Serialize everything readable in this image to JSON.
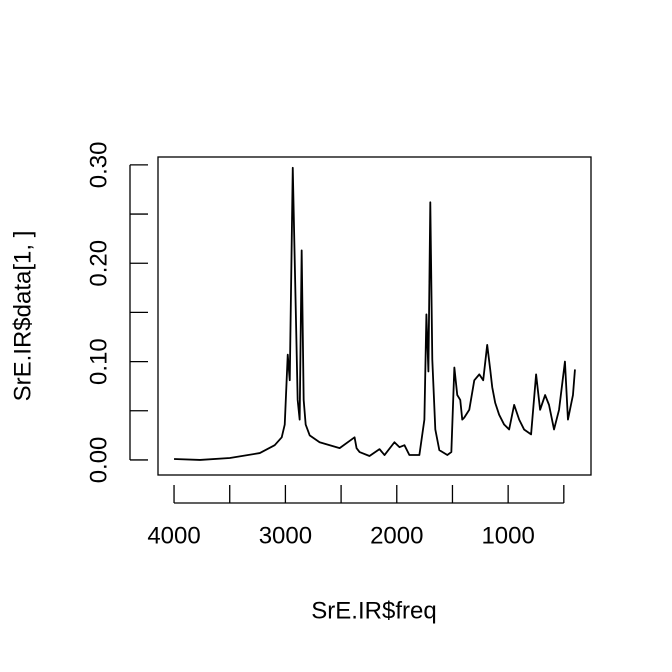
{
  "chart_data": {
    "type": "line",
    "x_label": "SrE.IR$freq",
    "y_label": "SrE.IR$data[1, ]",
    "x": [
      4000,
      3767,
      3499,
      3230,
      3096,
      3033,
      3006,
      2979,
      2961,
      2934,
      2907,
      2890,
      2872,
      2854,
      2836,
      2818,
      2782,
      2693,
      2513,
      2379,
      2361,
      2334,
      2245,
      2155,
      2110,
      2021,
      1976,
      1931,
      1887,
      1797,
      1752,
      1734,
      1716,
      1699,
      1681,
      1654,
      1618,
      1546,
      1510,
      1483,
      1457,
      1430,
      1412,
      1394,
      1349,
      1304,
      1259,
      1224,
      1188,
      1161,
      1143,
      1116,
      1081,
      1036,
      991,
      946,
      901,
      857,
      794,
      749,
      713,
      668,
      633,
      588,
      543,
      490,
      463,
      436,
      418,
      400
    ],
    "series": [
      {
        "color": "#000000",
        "values": [
          0.001,
          0.0,
          0.002,
          0.007,
          0.015,
          0.023,
          0.036,
          0.107,
          0.081,
          0.297,
          0.153,
          0.061,
          0.041,
          0.213,
          0.061,
          0.036,
          0.025,
          0.018,
          0.012,
          0.023,
          0.012,
          0.008,
          0.004,
          0.011,
          0.005,
          0.018,
          0.013,
          0.015,
          0.005,
          0.005,
          0.041,
          0.148,
          0.09,
          0.262,
          0.102,
          0.031,
          0.01,
          0.005,
          0.008,
          0.094,
          0.066,
          0.061,
          0.041,
          0.043,
          0.051,
          0.081,
          0.087,
          0.081,
          0.117,
          0.092,
          0.074,
          0.058,
          0.046,
          0.036,
          0.031,
          0.056,
          0.041,
          0.031,
          0.026,
          0.087,
          0.051,
          0.066,
          0.056,
          0.031,
          0.051,
          0.1,
          0.041,
          0.056,
          0.066,
          0.092
        ]
      }
    ],
    "xlim": [
      4144,
      256
    ],
    "ylim": [
      -0.0153,
      0.308
    ],
    "xticks": [
      4000,
      {
        "value": 3500,
        "label": null
      },
      3000,
      {
        "value": 2500,
        "label": null
      },
      2000,
      {
        "value": 1500,
        "label": null
      },
      1000,
      {
        "value": 500,
        "label": null
      }
    ],
    "yticks": [
      {
        "value": 0,
        "label": "0.00"
      },
      {
        "value": 0.05,
        "label": null
      },
      {
        "value": 0.1,
        "label": "0.10"
      },
      {
        "value": 0.15,
        "label": null
      },
      {
        "value": 0.2,
        "label": "0.20"
      },
      {
        "value": 0.25,
        "label": null
      },
      {
        "value": 0.3,
        "label": "0.30"
      }
    ]
  }
}
